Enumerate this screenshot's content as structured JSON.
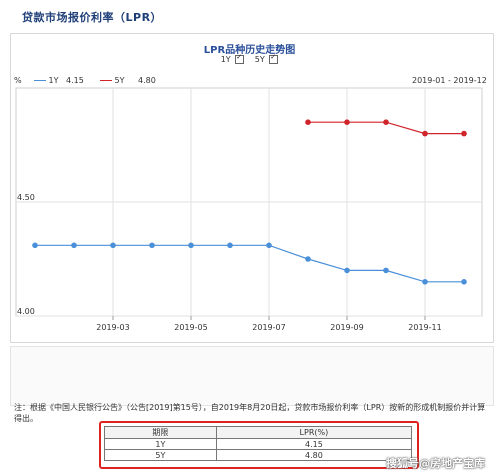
{
  "page_title": "贷款市场报价利率（LPR）",
  "chart": {
    "title": "LPR品种历史走势图",
    "checkbox_1y_label": "1Y",
    "checkbox_5y_label": "5Y",
    "unit_label": "%",
    "legend_1y": "1Y",
    "legend_1y_value": "4.15",
    "legend_5y": "5Y",
    "legend_5y_value": "4.80",
    "date_range": "2019-01 - 2019-12",
    "colors": {
      "1y": "#4a90d9",
      "5y": "#d0242b"
    }
  },
  "chart_data": {
    "type": "line",
    "x": [
      "2019-01",
      "2019-02",
      "2019-03",
      "2019-04",
      "2019-05",
      "2019-06",
      "2019-07",
      "2019-08",
      "2019-09",
      "2019-10",
      "2019-11",
      "2019-12"
    ],
    "x_tick_labels": [
      "2019-03",
      "2019-05",
      "2019-07",
      "2019-09",
      "2019-11"
    ],
    "y_tick_labels": [
      "4.50",
      "4.00"
    ],
    "ylim": [
      4.0,
      5.0
    ],
    "series": [
      {
        "name": "1Y",
        "values": [
          4.31,
          4.31,
          4.31,
          4.31,
          4.31,
          4.31,
          4.31,
          4.25,
          4.2,
          4.2,
          4.15,
          4.15
        ]
      },
      {
        "name": "5Y",
        "values": [
          null,
          null,
          null,
          null,
          null,
          null,
          null,
          4.85,
          4.85,
          4.85,
          4.8,
          4.8
        ]
      }
    ]
  },
  "note": "注：根据《中国人民银行公告》（公告[2019]第15号），自2019年8月20日起，贷款市场报价利率（LPR）按新的形成机制报价并计算得出。",
  "table": {
    "headers": [
      "期限",
      "LPR(%)"
    ],
    "rows": [
      {
        "term": "1Y",
        "rate": "4.15"
      },
      {
        "term": "5Y",
        "rate": "4.80"
      }
    ]
  },
  "watermark": "搜狐号@房地产宝库"
}
